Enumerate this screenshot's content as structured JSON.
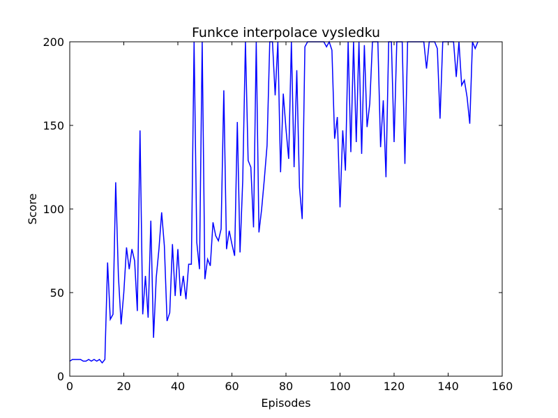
{
  "chart_data": {
    "type": "line",
    "title": "Funkce interpolace vysledku",
    "xlabel": "Episodes",
    "ylabel": "Score",
    "xlim": [
      0,
      160
    ],
    "ylim": [
      0,
      200
    ],
    "xticks": [
      0,
      20,
      40,
      60,
      80,
      100,
      120,
      140,
      160
    ],
    "yticks": [
      0,
      50,
      100,
      150,
      200
    ],
    "xtick_labels": [
      "0",
      "20",
      "40",
      "60",
      "80",
      "100",
      "120",
      "140",
      "160"
    ],
    "ytick_labels": [
      "0",
      "50",
      "100",
      "150",
      "200"
    ],
    "grid": false,
    "legend": "none",
    "series": [
      {
        "color": "#0000ff",
        "x": [
          0,
          1,
          2,
          3,
          4,
          5,
          6,
          7,
          8,
          9,
          10,
          11,
          12,
          13,
          14,
          15,
          16,
          17,
          18,
          19,
          20,
          21,
          22,
          23,
          24,
          25,
          26,
          27,
          28,
          29,
          30,
          31,
          32,
          33,
          34,
          35,
          36,
          37,
          38,
          39,
          40,
          41,
          42,
          43,
          44,
          45,
          46,
          47,
          48,
          49,
          50,
          51,
          52,
          53,
          54,
          55,
          56,
          57,
          58,
          59,
          60,
          61,
          62,
          63,
          64,
          65,
          66,
          67,
          68,
          69,
          70,
          71,
          72,
          73,
          74,
          75,
          76,
          77,
          78,
          79,
          80,
          81,
          82,
          83,
          84,
          85,
          86,
          87,
          88,
          89,
          90,
          91,
          92,
          93,
          94,
          95,
          96,
          97,
          98,
          99,
          100,
          101,
          102,
          103,
          104,
          105,
          106,
          107,
          108,
          109,
          110,
          111,
          112,
          113,
          114,
          115,
          116,
          117,
          118,
          119,
          120,
          121,
          122,
          123,
          124,
          125,
          126,
          127,
          128,
          129,
          130,
          131,
          132,
          133,
          134,
          135,
          136,
          137,
          138,
          139,
          140,
          141,
          142,
          143,
          144,
          145,
          146,
          147,
          148,
          149,
          150,
          151
        ],
        "values": [
          9,
          10,
          10,
          10,
          10,
          9,
          9,
          10,
          9,
          10,
          9,
          10,
          8,
          10,
          68,
          34,
          37,
          116,
          60,
          31,
          50,
          77,
          64,
          76,
          69,
          39,
          147,
          37,
          60,
          35,
          93,
          23,
          59,
          76,
          98,
          78,
          33,
          38,
          79,
          48,
          76,
          48,
          60,
          46,
          67,
          67,
          200,
          80,
          64,
          200,
          58,
          70,
          66,
          92,
          84,
          81,
          88,
          171,
          76,
          87,
          79,
          72,
          152,
          74,
          117,
          200,
          129,
          125,
          89,
          200,
          86,
          100,
          118,
          138,
          200,
          200,
          168,
          200,
          122,
          169,
          148,
          130,
          200,
          125,
          183,
          113,
          94,
          197,
          200,
          200,
          200,
          200,
          200,
          200,
          200,
          197,
          200,
          195,
          142,
          155,
          101,
          147,
          123,
          200,
          134,
          200,
          140,
          200,
          133,
          198,
          149,
          163,
          200,
          200,
          200,
          137,
          165,
          119,
          200,
          200,
          140,
          200,
          200,
          200,
          127,
          200,
          200,
          200,
          200,
          200,
          200,
          200,
          184,
          200,
          200,
          200,
          196,
          154,
          200,
          200,
          200,
          200,
          200,
          179,
          200,
          174,
          177,
          167,
          151,
          200,
          196,
          200
        ]
      }
    ]
  }
}
